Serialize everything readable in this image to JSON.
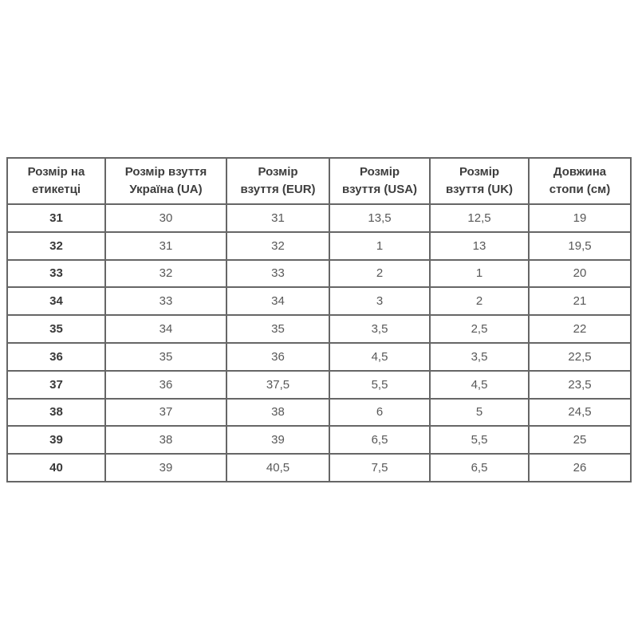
{
  "colors": {
    "background": "#ffffff",
    "table_border": "#666666",
    "header_text": "#3d3d3d",
    "cell_text": "#585858"
  },
  "chart_data": {
    "type": "table",
    "columns": [
      "Розмір на\nетикетці",
      "Розмір взуття\nУкраїна (UA)",
      "Розмір\nвзуття (EUR)",
      "Розмір\nвзуття (USA)",
      "Розмір\nвзуття (UK)",
      "Довжина\nстопи (см)"
    ],
    "rows": [
      [
        "31",
        "30",
        "31",
        "13,5",
        "12,5",
        "19"
      ],
      [
        "32",
        "31",
        "32",
        "1",
        "13",
        "19,5"
      ],
      [
        "33",
        "32",
        "33",
        "2",
        "1",
        "20"
      ],
      [
        "34",
        "33",
        "34",
        "3",
        "2",
        "21"
      ],
      [
        "35",
        "34",
        "35",
        "3,5",
        "2,5",
        "22"
      ],
      [
        "36",
        "35",
        "36",
        "4,5",
        "3,5",
        "22,5"
      ],
      [
        "37",
        "36",
        "37,5",
        "5,5",
        "4,5",
        "23,5"
      ],
      [
        "38",
        "37",
        "38",
        "6",
        "5",
        "24,5"
      ],
      [
        "39",
        "38",
        "39",
        "6,5",
        "5,5",
        "25"
      ],
      [
        "40",
        "39",
        "40,5",
        "7,5",
        "6,5",
        "26"
      ]
    ]
  }
}
